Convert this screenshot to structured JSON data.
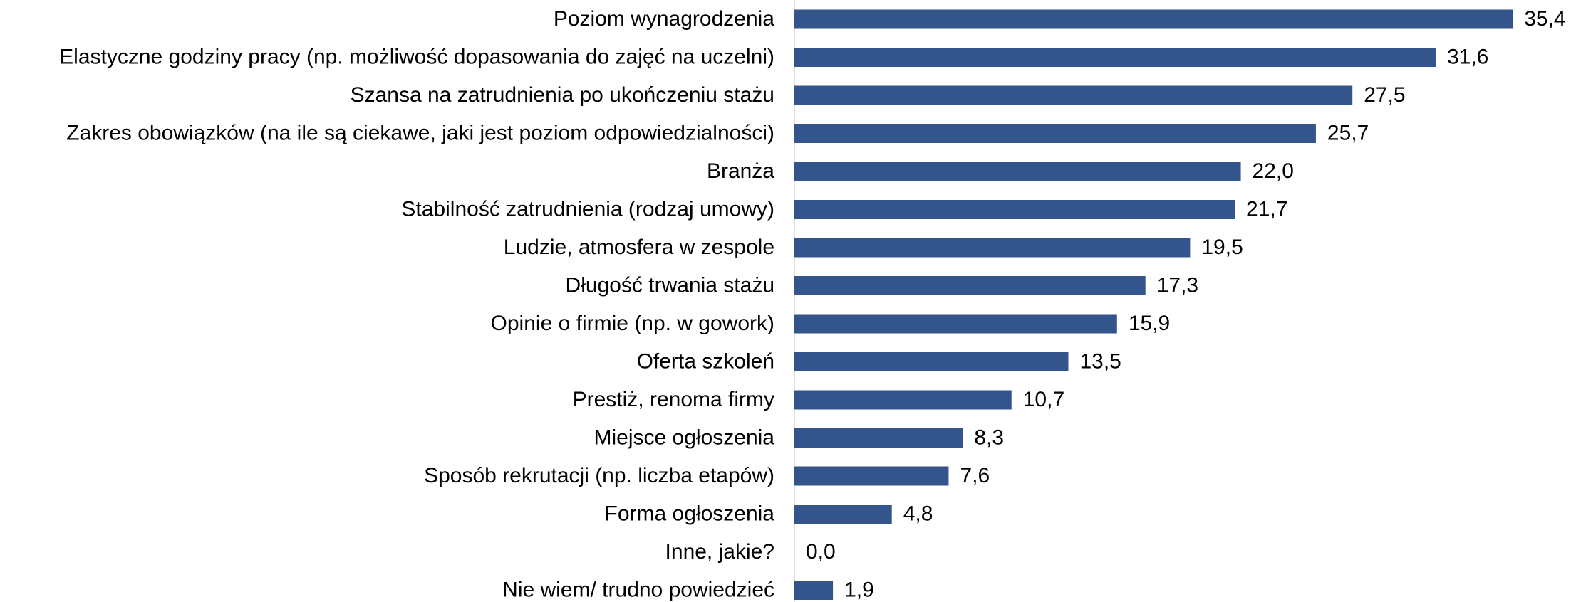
{
  "chart_data": {
    "type": "bar",
    "orientation": "horizontal",
    "categories": [
      "Poziom wynagrodzenia",
      "Elastyczne godziny pracy (np. możliwość dopasowania do zajęć na uczelni)",
      "Szansa na zatrudnienia po ukończeniu stażu",
      "Zakres obowiązków (na ile są ciekawe, jaki jest poziom odpowiedzialności)",
      "Branża",
      "Stabilność zatrudnienia (rodzaj umowy)",
      "Ludzie, atmosfera w zespole",
      "Długość trwania stażu",
      "Opinie o firmie (np. w gowork)",
      "Oferta szkoleń",
      "Prestiż, renoma firmy",
      "Miejsce ogłoszenia",
      "Sposób rekrutacji (np. liczba etapów)",
      "Forma ogłoszenia",
      "Inne, jakie?",
      "Nie wiem/ trudno powiedzieć"
    ],
    "values": [
      35.4,
      31.6,
      27.5,
      25.7,
      22.0,
      21.7,
      19.5,
      17.3,
      15.9,
      13.5,
      10.7,
      8.3,
      7.6,
      4.8,
      0.0,
      1.9
    ],
    "value_labels": [
      "35,4",
      "31,6",
      "27,5",
      "25,7",
      "22,0",
      "21,7",
      "19,5",
      "17,3",
      "15,9",
      "13,5",
      "10,7",
      "8,3",
      "7,6",
      "4,8",
      "0,0",
      "1,9"
    ],
    "color": "#34548c",
    "xlim": [
      0,
      37.5
    ]
  }
}
